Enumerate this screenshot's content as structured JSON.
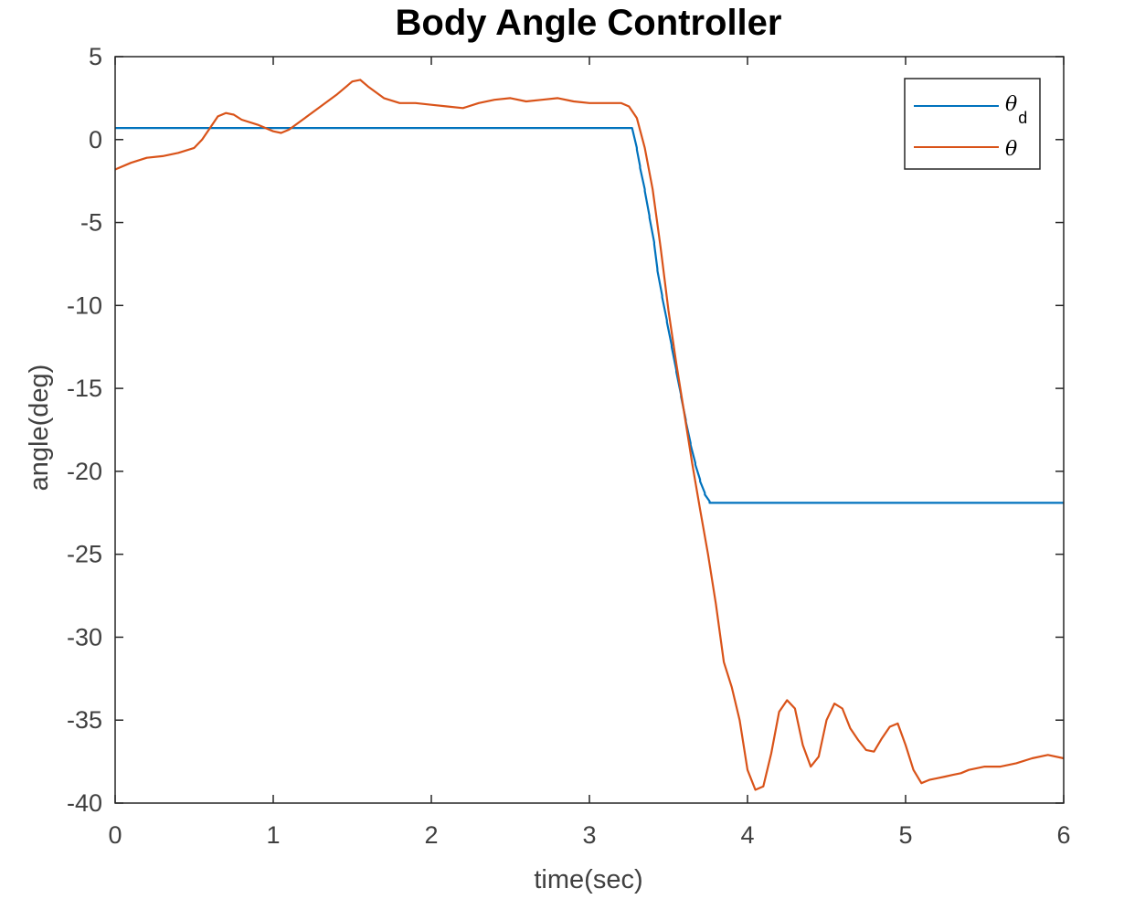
{
  "chart_data": {
    "type": "line",
    "title": "Body Angle Controller",
    "xlabel": "time(sec)",
    "ylabel": "angle(deg)",
    "xlim": [
      0,
      6
    ],
    "ylim": [
      -40,
      5
    ],
    "xticks": [
      0,
      1,
      2,
      3,
      4,
      5,
      6
    ],
    "yticks": [
      5,
      0,
      -5,
      -10,
      -15,
      -20,
      -25,
      -30,
      -35,
      -40
    ],
    "xtick_labels": [
      "0",
      "1",
      "2",
      "3",
      "4",
      "5",
      "6"
    ],
    "ytick_labels": [
      "5",
      "0",
      "-5",
      "-10",
      "-15",
      "-20",
      "-25",
      "-30",
      "-35",
      "-40"
    ],
    "grid": false,
    "legend_position": "top-right",
    "series": [
      {
        "name": "θd",
        "legend_symbol": "θ",
        "legend_subscript": "d",
        "color": "#0072BD",
        "x": [
          0,
          3.27,
          3.3,
          3.3,
          3.32,
          3.32,
          3.35,
          3.35,
          3.38,
          3.38,
          3.41,
          3.41,
          3.43,
          3.43,
          3.46,
          3.46,
          3.49,
          3.49,
          3.52,
          3.52,
          3.55,
          3.55,
          3.58,
          3.58,
          3.61,
          3.61,
          3.64,
          3.64,
          3.67,
          3.67,
          3.7,
          3.7,
          3.73,
          3.73,
          3.76,
          3.76,
          3.79,
          3.79,
          3.82,
          3.82,
          3.85,
          3.85,
          3.88,
          3.88,
          3.91,
          3.91,
          3.94,
          6
        ],
        "y": [
          0.7,
          0.7,
          -0.5,
          -0.6,
          -1.6,
          -1.7,
          -3.0,
          -3.1,
          -4.6,
          -4.7,
          -6.2,
          -6.3,
          -7.8,
          -7.9,
          -9.4,
          -9.5,
          -10.9,
          -11.0,
          -12.4,
          -12.5,
          -13.9,
          -14.0,
          -15.4,
          -15.5,
          -16.9,
          -17.0,
          -18.3,
          -18.4,
          -19.5,
          -19.6,
          -20.5,
          -20.6,
          -21.3,
          -21.4,
          -21.8,
          -21.9,
          -21.9,
          -21.9,
          -21.9,
          -21.9,
          -21.9,
          -21.9,
          -21.9,
          -21.9,
          -21.9,
          -21.9,
          -21.9,
          -21.9
        ]
      },
      {
        "name": "θ",
        "legend_symbol": "θ",
        "legend_subscript": "",
        "color": "#D95319",
        "x": [
          0,
          0.1,
          0.2,
          0.3,
          0.4,
          0.5,
          0.55,
          0.6,
          0.65,
          0.7,
          0.75,
          0.8,
          0.9,
          1.0,
          1.05,
          1.1,
          1.2,
          1.3,
          1.4,
          1.5,
          1.55,
          1.6,
          1.7,
          1.8,
          1.9,
          2.0,
          2.1,
          2.2,
          2.3,
          2.4,
          2.5,
          2.6,
          2.7,
          2.8,
          2.9,
          3.0,
          3.1,
          3.2,
          3.25,
          3.3,
          3.35,
          3.4,
          3.45,
          3.5,
          3.55,
          3.6,
          3.65,
          3.7,
          3.75,
          3.8,
          3.85,
          3.9,
          3.95,
          4.0,
          4.05,
          4.1,
          4.15,
          4.2,
          4.25,
          4.3,
          4.35,
          4.4,
          4.45,
          4.5,
          4.55,
          4.6,
          4.65,
          4.7,
          4.75,
          4.8,
          4.85,
          4.9,
          4.95,
          5.0,
          5.05,
          5.1,
          5.15,
          5.2,
          5.25,
          5.3,
          5.35,
          5.4,
          5.5,
          5.6,
          5.7,
          5.8,
          5.9,
          6.0
        ],
        "y": [
          -1.8,
          -1.4,
          -1.1,
          -1.0,
          -0.8,
          -0.5,
          0.0,
          0.7,
          1.4,
          1.6,
          1.5,
          1.2,
          0.9,
          0.5,
          0.4,
          0.6,
          1.3,
          2.0,
          2.7,
          3.5,
          3.6,
          3.2,
          2.5,
          2.2,
          2.2,
          2.1,
          2.0,
          1.9,
          2.2,
          2.4,
          2.5,
          2.3,
          2.4,
          2.5,
          2.3,
          2.2,
          2.2,
          2.2,
          2.0,
          1.3,
          -0.5,
          -3.0,
          -6.5,
          -10.3,
          -13.5,
          -16.5,
          -19.5,
          -22.3,
          -25.0,
          -28.0,
          -31.5,
          -33.0,
          -35.0,
          -38.0,
          -39.2,
          -39.0,
          -37.0,
          -34.5,
          -33.8,
          -34.3,
          -36.5,
          -37.8,
          -37.2,
          -35.0,
          -34.0,
          -34.3,
          -35.5,
          -36.2,
          -36.8,
          -36.9,
          -36.1,
          -35.4,
          -35.2,
          -36.5,
          -38.0,
          -38.8,
          -38.6,
          -38.5,
          -38.4,
          -38.3,
          -38.2,
          -38.0,
          -37.8,
          -37.8,
          -37.6,
          -37.3,
          -37.1,
          -37.3
        ]
      }
    ]
  }
}
